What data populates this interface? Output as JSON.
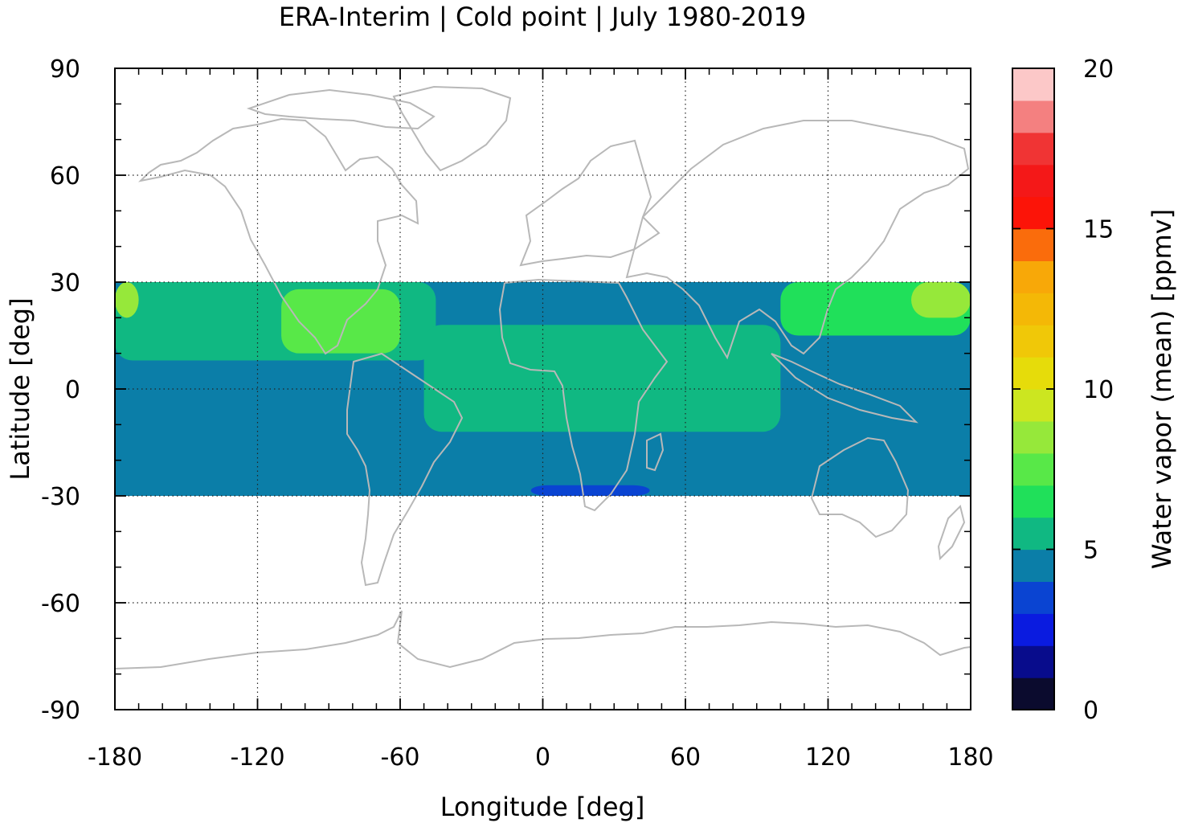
{
  "chart_data": {
    "type": "heatmap",
    "title": "ERA-Interim | Cold point | July 1980-2019",
    "xlabel": "Longitude [deg]",
    "ylabel": "Latitude [deg]",
    "xlim": [
      -180,
      180
    ],
    "ylim": [
      -90,
      90
    ],
    "xticks": [
      -180,
      -120,
      -60,
      0,
      60,
      120,
      180
    ],
    "yticks": [
      -90,
      -60,
      -30,
      0,
      30,
      60,
      90
    ],
    "xtick_labels": [
      "-180",
      "-120",
      "-60",
      "0",
      "60",
      "120",
      "180"
    ],
    "ytick_labels": [
      "-90",
      "-60",
      "-30",
      "0",
      "30",
      "60",
      "90"
    ],
    "grid": true,
    "data_lat_range": [
      -30,
      30
    ],
    "colorbar": {
      "label": "Water vapor (mean) [ppmv]",
      "range": [
        0,
        20
      ],
      "ticks": [
        0,
        5,
        10,
        15,
        20
      ],
      "tick_labels": [
        "0",
        "5",
        "10",
        "15",
        "20"
      ],
      "colors": [
        "#0b0b2e",
        "#080c8c",
        "#0a1be0",
        "#0a44d2",
        "#0b7ea8",
        "#10b882",
        "#20e05a",
        "#58e848",
        "#96e83a",
        "#cce620",
        "#e6dc0a",
        "#f0c808",
        "#f4b806",
        "#f8a808",
        "#fa6c0c",
        "#fc1408",
        "#f41818",
        "#f03434",
        "#f48080",
        "#fcc8c8"
      ]
    },
    "field_regions": [
      {
        "lon": [
          -180,
          180
        ],
        "lat": [
          -30,
          30
        ],
        "value": 4.5
      },
      {
        "lon": [
          -180,
          -45
        ],
        "lat": [
          8,
          30
        ],
        "value": 5.5
      },
      {
        "lon": [
          -50,
          100
        ],
        "lat": [
          -12,
          18
        ],
        "value": 5.5
      },
      {
        "lon": [
          100,
          180
        ],
        "lat": [
          15,
          30
        ],
        "value": 6.5
      },
      {
        "lon": [
          -110,
          -60
        ],
        "lat": [
          10,
          28
        ],
        "value": 7.0
      },
      {
        "lon": [
          -180,
          -170
        ],
        "lat": [
          20,
          30
        ],
        "value": 8.0
      },
      {
        "lon": [
          155,
          180
        ],
        "lat": [
          20,
          30
        ],
        "value": 8.5
      },
      {
        "lon": [
          -5,
          45
        ],
        "lat": [
          -30,
          -27
        ],
        "value": 3.5
      }
    ]
  }
}
